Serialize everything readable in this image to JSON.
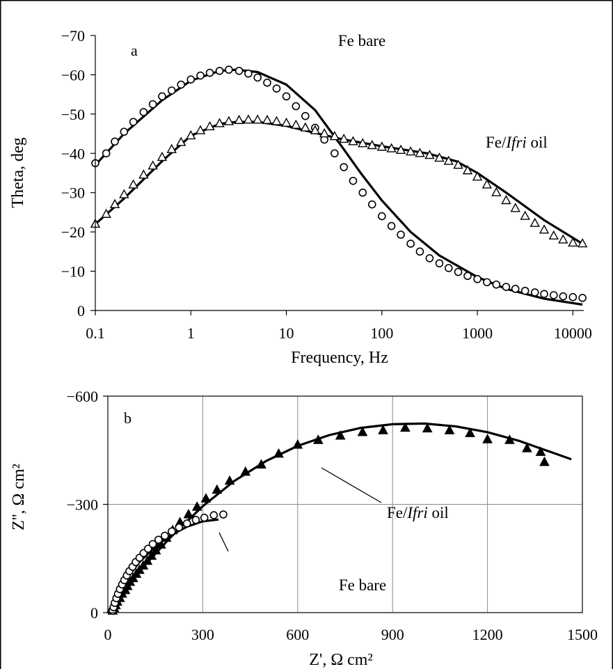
{
  "chart_data": [
    {
      "panel": "a",
      "type": "line",
      "xlabel": "Frequency, Hz",
      "ylabel": "Theta, deg",
      "x_scale": "log",
      "xlim": [
        0.1,
        13000
      ],
      "ylim": [
        0,
        -70
      ],
      "xticks": [
        "0.1",
        "1",
        "10",
        "100",
        "1000",
        "10000"
      ],
      "yticks": [
        "0",
        "−10",
        "−20",
        "−30",
        "−40",
        "−50",
        "−60",
        "−70"
      ],
      "grid": false,
      "annotations": {
        "top": "Fe bare",
        "right_prefix": "Fe/",
        "right_italic": "Ifri",
        "right_suffix": " oil"
      },
      "series": [
        {
          "name": "Fe bare",
          "marker": "open-circle",
          "points": [
            [
              0.1,
              -37.5
            ],
            [
              0.13,
              -40
            ],
            [
              0.16,
              -43
            ],
            [
              0.2,
              -45.5
            ],
            [
              0.25,
              -48
            ],
            [
              0.32,
              -50.5
            ],
            [
              0.4,
              -52.5
            ],
            [
              0.5,
              -54.5
            ],
            [
              0.63,
              -56
            ],
            [
              0.79,
              -57.5
            ],
            [
              1,
              -58.8
            ],
            [
              1.26,
              -59.8
            ],
            [
              1.58,
              -60.5
            ],
            [
              2,
              -61
            ],
            [
              2.5,
              -61.3
            ],
            [
              3.2,
              -61
            ],
            [
              4,
              -60.3
            ],
            [
              5,
              -59.3
            ],
            [
              6.3,
              -58
            ],
            [
              7.9,
              -56.5
            ],
            [
              10,
              -54.5
            ],
            [
              12.6,
              -52
            ],
            [
              15.8,
              -49.5
            ],
            [
              20,
              -46.5
            ],
            [
              25,
              -43.5
            ],
            [
              32,
              -40
            ],
            [
              40,
              -36.5
            ],
            [
              50,
              -33
            ],
            [
              63,
              -30
            ],
            [
              79,
              -27
            ],
            [
              100,
              -24
            ],
            [
              126,
              -21.5
            ],
            [
              158,
              -19.3
            ],
            [
              200,
              -17
            ],
            [
              250,
              -15
            ],
            [
              316,
              -13.3
            ],
            [
              400,
              -12
            ],
            [
              500,
              -10.8
            ],
            [
              630,
              -9.8
            ],
            [
              790,
              -8.8
            ],
            [
              1000,
              -8
            ],
            [
              1260,
              -7.2
            ],
            [
              1580,
              -6.6
            ],
            [
              2000,
              -6
            ],
            [
              2500,
              -5.5
            ],
            [
              3160,
              -5
            ],
            [
              4000,
              -4.6
            ],
            [
              5000,
              -4.2
            ],
            [
              6300,
              -3.9
            ],
            [
              7900,
              -3.6
            ],
            [
              10000,
              -3.4
            ],
            [
              12600,
              -3.2
            ]
          ]
        },
        {
          "name": "Fe/Ifri oil",
          "marker": "open-triangle",
          "points": [
            [
              0.1,
              -22
            ],
            [
              0.13,
              -24.5
            ],
            [
              0.16,
              -27
            ],
            [
              0.2,
              -29.5
            ],
            [
              0.25,
              -32
            ],
            [
              0.32,
              -34.5
            ],
            [
              0.4,
              -36.8
            ],
            [
              0.5,
              -39
            ],
            [
              0.63,
              -41
            ],
            [
              0.79,
              -42.8
            ],
            [
              1,
              -44.5
            ],
            [
              1.26,
              -45.8
            ],
            [
              1.58,
              -46.8
            ],
            [
              2,
              -47.6
            ],
            [
              2.5,
              -48.1
            ],
            [
              3.2,
              -48.4
            ],
            [
              4,
              -48.5
            ],
            [
              5,
              -48.5
            ],
            [
              6.3,
              -48.4
            ],
            [
              7.9,
              -48.1
            ],
            [
              10,
              -47.7
            ],
            [
              12.6,
              -47.2
            ],
            [
              15.8,
              -46.5
            ],
            [
              20,
              -45.8
            ],
            [
              25,
              -45
            ],
            [
              32,
              -44.3
            ],
            [
              40,
              -43.6
            ],
            [
              50,
              -43
            ],
            [
              63,
              -42.5
            ],
            [
              79,
              -42
            ],
            [
              100,
              -41.6
            ],
            [
              126,
              -41.2
            ],
            [
              158,
              -40.8
            ],
            [
              200,
              -40.4
            ],
            [
              250,
              -40
            ],
            [
              316,
              -39.5
            ],
            [
              400,
              -38.8
            ],
            [
              500,
              -38
            ],
            [
              630,
              -37
            ],
            [
              790,
              -35.6
            ],
            [
              1000,
              -34
            ],
            [
              1260,
              -32
            ],
            [
              1580,
              -30
            ],
            [
              2000,
              -28
            ],
            [
              2500,
              -26
            ],
            [
              3160,
              -24
            ],
            [
              4000,
              -22.2
            ],
            [
              5000,
              -20.5
            ],
            [
              6300,
              -19
            ],
            [
              7900,
              -18
            ],
            [
              10000,
              -17.2
            ],
            [
              12600,
              -17
            ]
          ]
        }
      ],
      "fit_lines": [
        {
          "name": "Fe bare fit",
          "points": [
            [
              0.1,
              -37
            ],
            [
              0.2,
              -45
            ],
            [
              0.5,
              -53.5
            ],
            [
              1,
              -58.5
            ],
            [
              2,
              -61
            ],
            [
              3,
              -61.3
            ],
            [
              5,
              -60.7
            ],
            [
              10,
              -57.5
            ],
            [
              20,
              -51
            ],
            [
              40,
              -41
            ],
            [
              60,
              -35
            ],
            [
              100,
              -28
            ],
            [
              200,
              -20
            ],
            [
              400,
              -14
            ],
            [
              1000,
              -8.5
            ],
            [
              2000,
              -5.5
            ],
            [
              5000,
              -3
            ],
            [
              12600,
              -1.5
            ]
          ]
        },
        {
          "name": "Fe/Ifri oil fit",
          "points": [
            [
              0.1,
              -22
            ],
            [
              0.2,
              -28.5
            ],
            [
              0.5,
              -38
            ],
            [
              1,
              -44.5
            ],
            [
              2,
              -47.5
            ],
            [
              3,
              -48
            ],
            [
              5,
              -48
            ],
            [
              10,
              -47
            ],
            [
              20,
              -45.2
            ],
            [
              40,
              -43.5
            ],
            [
              100,
              -41.8
            ],
            [
              300,
              -40
            ],
            [
              600,
              -38
            ],
            [
              1000,
              -35
            ],
            [
              2000,
              -30
            ],
            [
              5000,
              -23
            ],
            [
              12600,
              -17
            ]
          ]
        }
      ]
    },
    {
      "panel": "b",
      "type": "scatter",
      "xlabel": "Z', Ω cm²",
      "ylabel": "Z'', Ω cm²",
      "xlim": [
        0,
        1500
      ],
      "ylim": [
        0,
        -600
      ],
      "xticks": [
        "0",
        "300",
        "600",
        "900",
        "1200",
        "1500"
      ],
      "yticks": [
        "0",
        "−300",
        "−600"
      ],
      "grid": true,
      "annotations": {
        "middle_prefix": "Fe/",
        "middle_italic": "Ifri",
        "middle_suffix": " oil",
        "lower": "Fe bare"
      },
      "series": [
        {
          "name": "Fe/Ifri oil",
          "marker": "filled-triangle",
          "points": [
            [
              15,
              -5
            ],
            [
              20,
              -12
            ],
            [
              25,
              -20
            ],
            [
              30,
              -30
            ],
            [
              38,
              -40
            ],
            [
              45,
              -52
            ],
            [
              55,
              -62
            ],
            [
              62,
              -73
            ],
            [
              70,
              -85
            ],
            [
              80,
              -95
            ],
            [
              90,
              -107
            ],
            [
              100,
              -118
            ],
            [
              112,
              -130
            ],
            [
              125,
              -143
            ],
            [
              138,
              -157
            ],
            [
              152,
              -172
            ],
            [
              168,
              -188
            ],
            [
              185,
              -207
            ],
            [
              205,
              -228
            ],
            [
              228,
              -250
            ],
            [
              255,
              -272
            ],
            [
              282,
              -293
            ],
            [
              310,
              -316
            ],
            [
              345,
              -340
            ],
            [
              385,
              -365
            ],
            [
              435,
              -390
            ],
            [
              485,
              -410
            ],
            [
              540,
              -440
            ],
            [
              600,
              -465
            ],
            [
              665,
              -478
            ],
            [
              735,
              -490
            ],
            [
              805,
              -500
            ],
            [
              870,
              -505
            ],
            [
              940,
              -512
            ],
            [
              1010,
              -510
            ],
            [
              1080,
              -505
            ],
            [
              1145,
              -497
            ],
            [
              1200,
              -480
            ],
            [
              1270,
              -478
            ],
            [
              1325,
              -455
            ],
            [
              1368,
              -445
            ],
            [
              1380,
              -417
            ]
          ]
        },
        {
          "name": "Fe bare",
          "marker": "open-circle",
          "points": [
            [
              15,
              -5
            ],
            [
              18,
              -15
            ],
            [
              22,
              -27
            ],
            [
              27,
              -40
            ],
            [
              32,
              -52
            ],
            [
              38,
              -65
            ],
            [
              45,
              -78
            ],
            [
              52,
              -90
            ],
            [
              60,
              -103
            ],
            [
              68,
              -115
            ],
            [
              78,
              -127
            ],
            [
              88,
              -140
            ],
            [
              100,
              -152
            ],
            [
              113,
              -165
            ],
            [
              127,
              -177
            ],
            [
              142,
              -190
            ],
            [
              160,
              -202
            ],
            [
              180,
              -213
            ],
            [
              202,
              -225
            ],
            [
              225,
              -236
            ],
            [
              250,
              -247
            ],
            [
              278,
              -257
            ],
            [
              305,
              -263
            ],
            [
              335,
              -270
            ],
            [
              365,
              -272
            ]
          ]
        }
      ],
      "fit_lines": [
        {
          "name": "Fe/Ifri oil fit",
          "points": [
            [
              0,
              0
            ],
            [
              50,
              -60
            ],
            [
              100,
              -115
            ],
            [
              200,
              -210
            ],
            [
              300,
              -295
            ],
            [
              400,
              -365
            ],
            [
              500,
              -420
            ],
            [
              600,
              -462
            ],
            [
              700,
              -492
            ],
            [
              800,
              -512
            ],
            [
              900,
              -522
            ],
            [
              1000,
              -524
            ],
            [
              1100,
              -516
            ],
            [
              1200,
              -500
            ],
            [
              1300,
              -476
            ],
            [
              1400,
              -445
            ],
            [
              1465,
              -425
            ]
          ]
        },
        {
          "name": "Fe bare fit",
          "points": [
            [
              0,
              0
            ],
            [
              30,
              -50
            ],
            [
              60,
              -95
            ],
            [
              100,
              -140
            ],
            [
              150,
              -183
            ],
            [
              200,
              -215
            ],
            [
              250,
              -238
            ],
            [
              300,
              -253
            ],
            [
              350,
              -258
            ]
          ]
        }
      ]
    }
  ]
}
